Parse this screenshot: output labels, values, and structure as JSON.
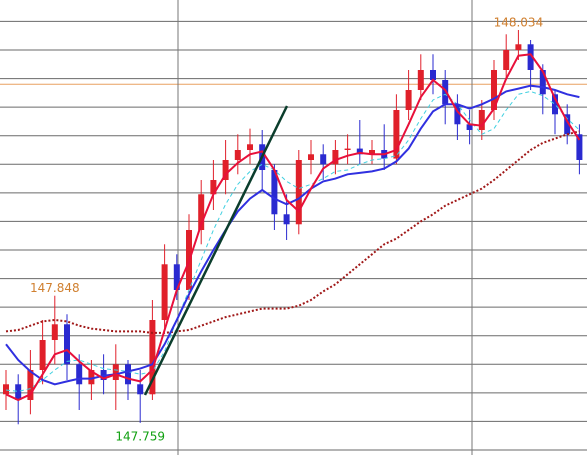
{
  "chart_data": {
    "type": "candlestick",
    "ylim": [
      147.7365,
      148.055
    ],
    "yticks": [
      147.74,
      147.76,
      147.78,
      147.8,
      147.82,
      147.84,
      147.86,
      147.88,
      147.9,
      147.92,
      147.94,
      147.96,
      147.98,
      148.0,
      148.02,
      148.04
    ],
    "grid": true,
    "up_color": "#e0202a",
    "down_color": "#2a2ad0",
    "price_line": {
      "value": 147.996,
      "color": "#e8a060"
    },
    "candles": {
      "open": [
        147.779,
        147.786,
        147.775,
        147.796,
        147.817,
        147.828,
        147.8,
        147.786,
        147.796,
        147.789,
        147.8,
        147.786,
        147.779,
        147.831,
        147.87,
        147.852,
        147.894,
        147.919,
        147.929,
        147.943,
        147.95,
        147.954,
        147.936,
        147.905,
        147.898,
        147.943,
        147.947,
        147.94,
        147.95,
        147.951,
        147.947,
        147.95,
        147.944,
        147.978,
        147.992,
        148.006,
        147.999,
        147.982,
        147.968,
        147.964,
        147.978,
        148.006,
        148.02,
        148.024,
        148.006,
        147.989,
        147.975,
        147.961
      ],
      "high": [
        147.796,
        147.793,
        147.81,
        147.831,
        147.848,
        147.835,
        147.807,
        147.803,
        147.807,
        147.814,
        147.803,
        147.796,
        147.845,
        147.884,
        147.877,
        147.905,
        147.929,
        147.943,
        147.957,
        147.961,
        147.965,
        147.964,
        147.94,
        147.919,
        147.95,
        147.957,
        147.954,
        147.957,
        147.961,
        147.971,
        147.957,
        147.968,
        147.989,
        148.006,
        148.017,
        148.017,
        148.006,
        147.989,
        147.978,
        147.985,
        148.013,
        148.031,
        148.034,
        148.027,
        148.01,
        147.992,
        147.982,
        147.968
      ],
      "low": [
        147.768,
        147.758,
        147.765,
        147.786,
        147.8,
        147.789,
        147.768,
        147.775,
        147.779,
        147.768,
        147.775,
        147.759,
        147.775,
        147.824,
        147.845,
        147.845,
        147.884,
        147.908,
        147.919,
        147.933,
        147.94,
        147.922,
        147.894,
        147.887,
        147.891,
        147.933,
        147.929,
        147.933,
        147.94,
        147.94,
        147.94,
        147.936,
        147.94,
        147.971,
        147.985,
        147.989,
        147.968,
        147.957,
        147.954,
        147.957,
        147.971,
        147.999,
        148.013,
        147.992,
        147.975,
        147.961,
        147.954,
        147.933
      ],
      "close": [
        147.786,
        147.775,
        147.796,
        147.817,
        147.828,
        147.8,
        147.786,
        147.796,
        147.789,
        147.8,
        147.786,
        147.779,
        147.831,
        147.87,
        147.852,
        147.894,
        147.919,
        147.929,
        147.943,
        147.95,
        147.954,
        147.936,
        147.905,
        147.898,
        147.943,
        147.947,
        147.94,
        147.95,
        147.951,
        147.947,
        147.95,
        147.944,
        147.978,
        147.992,
        148.006,
        147.999,
        147.982,
        147.968,
        147.964,
        147.978,
        148.006,
        148.02,
        148.024,
        148.006,
        147.989,
        147.975,
        147.961,
        147.943
      ]
    },
    "series": [
      {
        "color": "#a01818",
        "style": "dotted",
        "width": 2,
        "values": [
          147.823,
          147.824,
          147.827,
          147.83,
          147.831,
          147.83,
          147.827,
          147.825,
          147.824,
          147.823,
          147.823,
          147.823,
          147.822,
          147.822,
          147.823,
          147.824,
          147.827,
          147.83,
          147.833,
          147.835,
          147.837,
          147.839,
          147.839,
          147.839,
          147.841,
          147.845,
          147.851,
          147.856,
          147.863,
          147.87,
          147.877,
          147.884,
          147.888,
          147.894,
          147.9,
          147.905,
          147.911,
          147.915,
          147.919,
          147.923,
          147.929,
          147.936,
          147.943,
          147.95,
          147.955,
          147.958,
          147.961,
          147.963
        ]
      },
      {
        "color": "#40d0e0",
        "style": "dashed",
        "width": 1,
        "values": [
          147.782,
          147.781,
          147.783,
          147.789,
          147.796,
          147.802,
          147.803,
          147.8,
          147.797,
          147.796,
          147.795,
          147.793,
          147.795,
          147.809,
          147.831,
          147.852,
          147.873,
          147.894,
          147.912,
          147.926,
          147.935,
          147.94,
          147.936,
          147.928,
          147.923,
          147.926,
          147.93,
          147.935,
          147.936,
          147.94,
          147.943,
          147.944,
          147.946,
          147.957,
          147.972,
          147.985,
          147.989,
          147.982,
          147.971,
          147.961,
          147.965,
          147.978,
          147.989,
          147.991,
          147.988,
          147.982,
          147.972,
          147.964
        ]
      },
      {
        "color": "#3030e0",
        "style": "solid",
        "width": 2,
        "values": [
          147.814,
          147.803,
          147.795,
          147.789,
          147.786,
          147.788,
          147.79,
          147.79,
          147.792,
          147.793,
          147.795,
          147.797,
          147.8,
          147.814,
          147.831,
          147.849,
          147.865,
          147.88,
          147.894,
          147.907,
          147.916,
          147.922,
          147.916,
          147.912,
          147.916,
          147.923,
          147.928,
          147.93,
          147.933,
          147.934,
          147.935,
          147.937,
          147.942,
          147.951,
          147.965,
          147.977,
          147.982,
          147.982,
          147.979,
          147.982,
          147.986,
          147.991,
          147.993,
          147.995,
          147.994,
          147.992,
          147.989,
          147.987
        ]
      },
      {
        "color": "#e8103a",
        "style": "solid",
        "width": 2,
        "values": [
          147.779,
          147.775,
          147.779,
          147.793,
          147.807,
          147.81,
          147.802,
          147.795,
          147.79,
          147.793,
          147.79,
          147.788,
          147.796,
          147.824,
          147.852,
          147.872,
          147.898,
          147.919,
          147.933,
          147.941,
          147.947,
          147.949,
          147.936,
          147.915,
          147.907,
          147.923,
          147.937,
          147.943,
          147.946,
          147.948,
          147.947,
          147.947,
          147.95,
          147.968,
          147.987,
          147.999,
          147.992,
          147.977,
          147.968,
          147.967,
          147.979,
          148.0,
          148.016,
          148.017,
          148.005,
          147.986,
          147.97,
          147.957
        ]
      }
    ],
    "annotations": [
      {
        "value": 148.034,
        "color": "#d08030",
        "anchor": "high"
      },
      {
        "value": 147.848,
        "color": "#d08030",
        "anchor": "high"
      },
      {
        "value": 147.759,
        "color": "#10a010",
        "anchor": "low"
      }
    ]
  }
}
